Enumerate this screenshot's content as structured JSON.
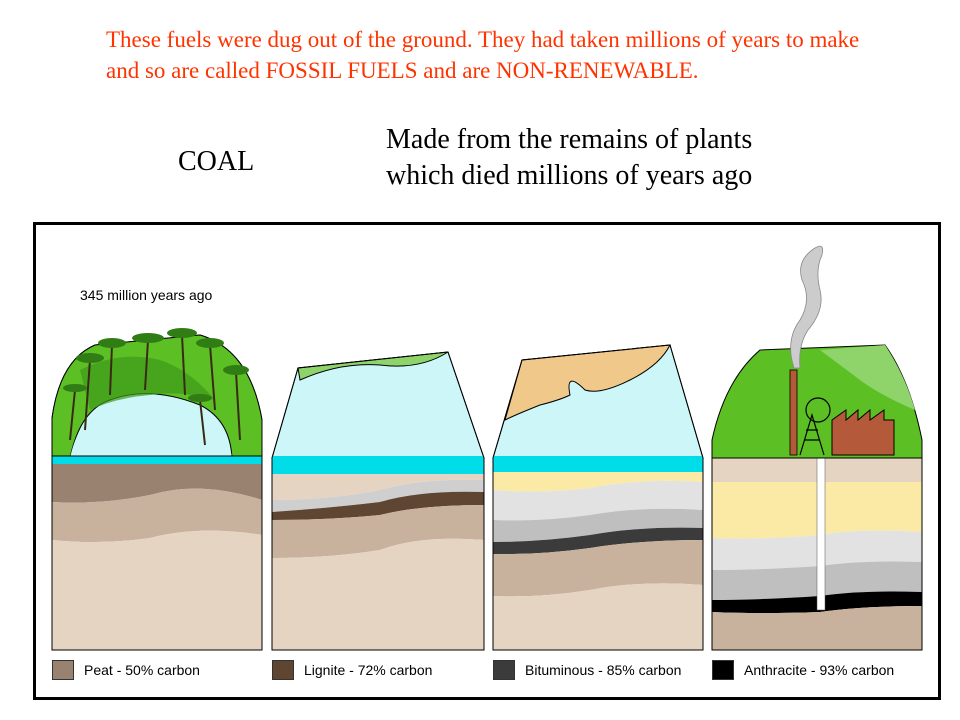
{
  "intro": {
    "text": "These fuels were dug out of the ground. They had taken millions of years to make and so are called FOSSIL FUELS and are NON-RENEWABLE."
  },
  "heading": "COAL",
  "description": {
    "line1": "Made from the remains of plants",
    "line2": "which died millions of years ago"
  },
  "diagram": {
    "caption": "345 million years ago",
    "legend": [
      {
        "label": "Peat  - 50% carbon",
        "color": "#9a8270"
      },
      {
        "label": "Lignite - 72% carbon",
        "color": "#5e4632"
      },
      {
        "label": "Bituminous - 85% carbon",
        "color": "#3b3b3b"
      },
      {
        "label": "Anthracite - 93% carbon",
        "color": "#000000"
      }
    ],
    "colors": {
      "water": "#ccf6f8",
      "sea": "#00dde8",
      "vegetation": "#5cc025",
      "sand": "#f0c98a",
      "light_rock": "#e6d4c3",
      "mid_rock": "#c9b29d",
      "yellow_layer": "#faeaa5",
      "grey_layer": "#cfcfcf",
      "factory": "#b45a3a"
    }
  }
}
